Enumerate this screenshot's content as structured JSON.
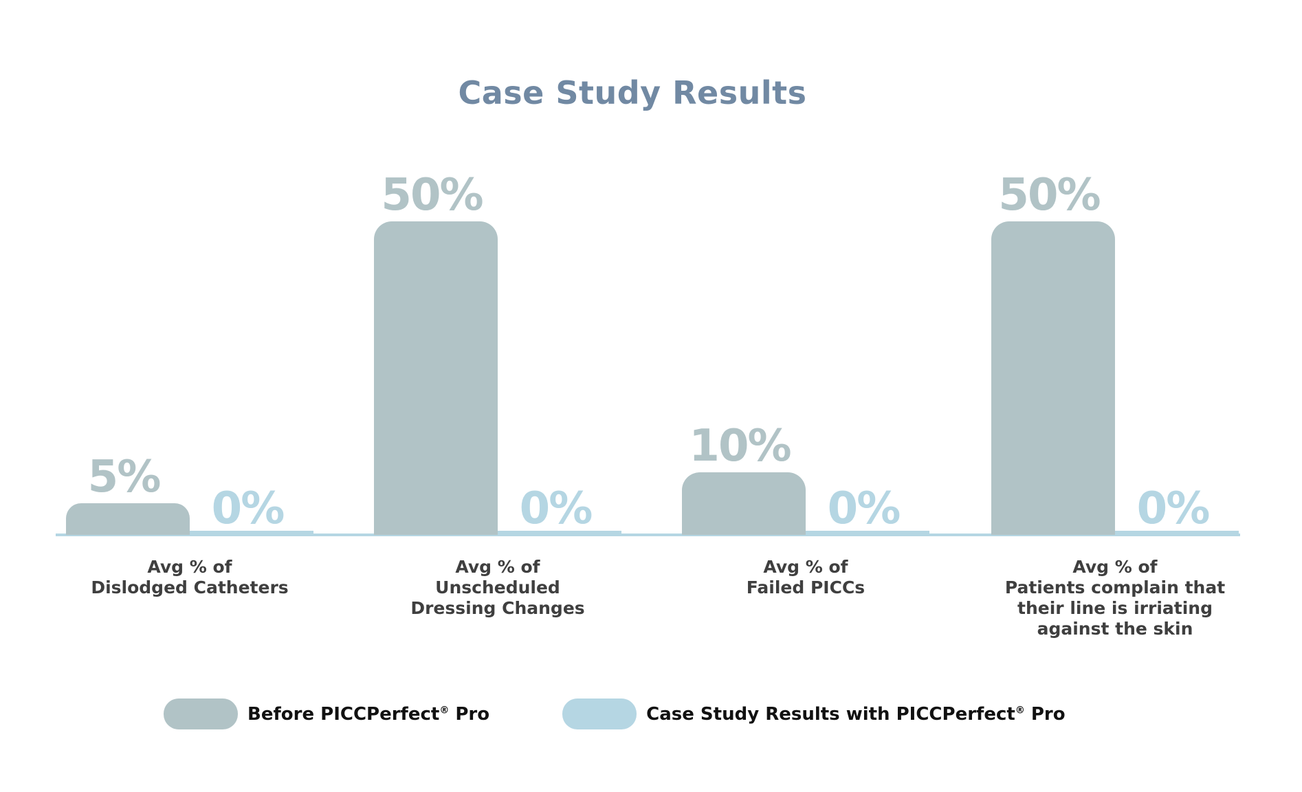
{
  "title": "Case Study Results",
  "colors": {
    "before": "#b1c3c6",
    "after": "#b5d6e3",
    "title": "#7189a3",
    "label": "#3f3f3f"
  },
  "legend": [
    {
      "label": "Before PICCPerfect",
      "reg": "®",
      "suffix": " Pro",
      "color": "#b1c3c6"
    },
    {
      "label": "Case Study Results with PICCPerfect",
      "reg": "®",
      "suffix": " Pro",
      "color": "#b5d6e3"
    }
  ],
  "groups": [
    {
      "label_lines": [
        "Avg % of",
        "Dislodged Catheters"
      ],
      "before": "5%",
      "after": "0%"
    },
    {
      "label_lines": [
        "Avg % of",
        "Unscheduled",
        "Dressing Changes"
      ],
      "before": "50%",
      "after": "0%"
    },
    {
      "label_lines": [
        "Avg % of",
        "Failed PICCs"
      ],
      "before": "10%",
      "after": "0%"
    },
    {
      "label_lines": [
        "Avg % of",
        "Patients complain that",
        "their line is irriating",
        "against the skin"
      ],
      "before": "50%",
      "after": "0%"
    }
  ],
  "chart_data": {
    "type": "bar",
    "title": "Case Study Results",
    "categories": [
      "Avg % of Dislodged Catheters",
      "Avg % of Unscheduled Dressing Changes",
      "Avg % of Failed PICCs",
      "Avg % of Patients complain that their line is irriating against the skin"
    ],
    "series": [
      {
        "name": "Before PICCPerfect® Pro",
        "values": [
          5,
          50,
          10,
          50
        ],
        "color": "#b1c3c6"
      },
      {
        "name": "Case Study Results with PICCPerfect® Pro",
        "values": [
          0,
          0,
          0,
          0
        ],
        "color": "#b5d6e3"
      }
    ],
    "xlabel": "",
    "ylabel": "",
    "ylim": [
      0,
      50
    ],
    "grid": false,
    "legend_position": "bottom",
    "data_labels": true
  }
}
